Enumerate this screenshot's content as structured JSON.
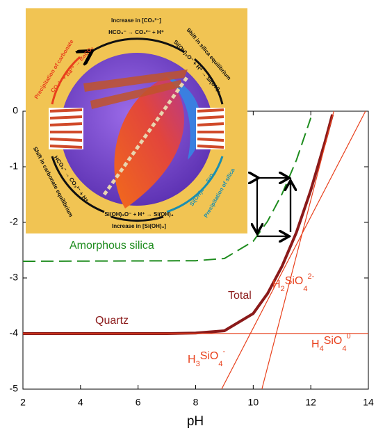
{
  "chart_data": {
    "type": "line",
    "xlabel": "pH",
    "xlim": [
      2,
      14
    ],
    "xticks": [
      2,
      4,
      6,
      8,
      10,
      12,
      14
    ],
    "ylim": [
      -5,
      0
    ],
    "yticks": [
      0,
      -1,
      -2,
      -3,
      -4,
      -5
    ],
    "series": [
      {
        "color": "#1e8c1e",
        "dashed": true,
        "x": [
          2,
          8,
          9,
          10,
          10.5,
          11,
          11.5,
          12
        ],
        "values": [
          -2.7,
          -2.69,
          -2.65,
          -2.34,
          -1.98,
          -1.49,
          -0.88,
          -0.12
        ]
      },
      {
        "color": "#8b1a1a",
        "dashed": false,
        "x": [
          2,
          7,
          8,
          9,
          10,
          10.5,
          11,
          11.5,
          12,
          12.5,
          12.75
        ],
        "values": [
          -4,
          -4,
          -3.99,
          -3.95,
          -3.64,
          -3.28,
          -2.79,
          -2.18,
          -1.42,
          -0.54,
          -0.06
        ]
      },
      {
        "color": "#e8401c",
        "dashed": false,
        "x": [
          2,
          14
        ],
        "values": [
          -4,
          -4
        ]
      },
      {
        "color": "#e8401c",
        "dashed": false,
        "x": [
          8.9,
          13.9
        ],
        "values": [
          -5,
          0
        ]
      },
      {
        "color": "#e8401c",
        "dashed": false,
        "x": [
          10.3,
          12.8
        ],
        "values": [
          -5,
          0
        ]
      }
    ],
    "annotations": [
      {
        "text": "Amorphous silica",
        "color": "#1e8c1e"
      },
      {
        "text": "Quartz",
        "color": "#8b1a1a"
      },
      {
        "text": "Total",
        "color": "#8b1a1a"
      },
      {
        "text": [
          "H",
          "2",
          "SiO",
          "4",
          "2-"
        ],
        "color": "#e8401c"
      },
      {
        "text": [
          "H",
          "4",
          "SiO",
          "4",
          "0"
        ],
        "color": "#e8401c"
      },
      {
        "text": [
          "H",
          "3",
          "SiO",
          "4",
          "-"
        ],
        "color": "#e8401c"
      }
    ]
  },
  "inset": {
    "texts": [
      "Increase in [CO₃²⁻]",
      "HCO₃⁻ → CO₃²⁻ + H⁺",
      "Shift in silica equilibrium",
      "Si(OH)₃O⁻ + H⁺ → Si(OH)₄",
      "Precipitation of carbonate",
      "CO₃²⁻ + Ba²⁺ → BaCO₃",
      "Shift in carbonate equilibrium",
      "HCO₃⁻ → CO₃²⁻ + H⁺",
      "Si(OH)₃O⁻ + H⁺ → Si(OH)₄",
      "Increase in [Si(OH)₄]",
      "Si(OH)₄ → SiO₂",
      "Precipitation of silica"
    ]
  }
}
